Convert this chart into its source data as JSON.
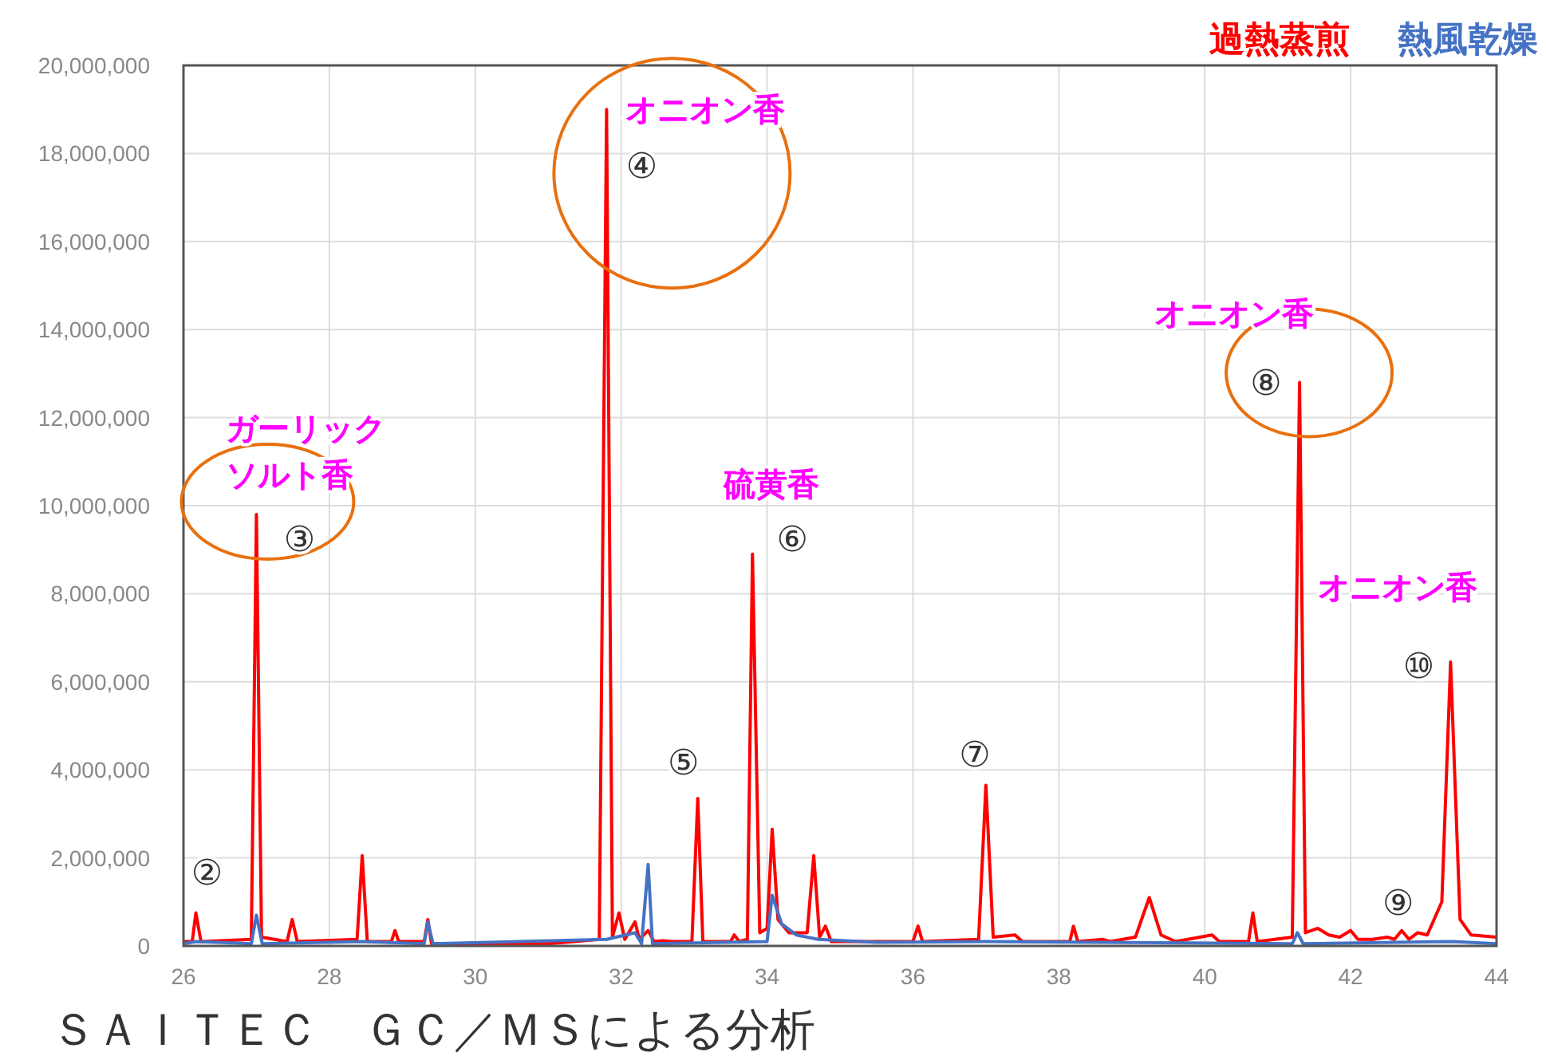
{
  "chart_data": {
    "type": "line",
    "xlim": [
      26,
      44
    ],
    "xticks": [
      26,
      28,
      30,
      32,
      34,
      36,
      38,
      40,
      42,
      44
    ],
    "ylim": [
      0,
      20000000
    ],
    "yticks": [
      0,
      {
        "value": 2000000,
        "label": "2,000,000"
      },
      {
        "value": 4000000,
        "label": "4,000,000"
      },
      {
        "value": 6000000,
        "label": "6,000,000"
      },
      {
        "value": 8000000,
        "label": "8,000,000"
      },
      {
        "value": 10000000,
        "label": "10,000,000"
      },
      {
        "value": 12000000,
        "label": "12,000,000"
      },
      {
        "value": 14000000,
        "label": "14,000,000"
      },
      {
        "value": 16000000,
        "label": "16,000,000"
      },
      {
        "value": 18000000,
        "label": "18,000,000"
      },
      {
        "value": 20000000,
        "label": "20,000,000"
      }
    ],
    "grid": true,
    "legend": "top right",
    "marker": "none",
    "line_style": "solid",
    "series": [
      {
        "name": "過熱蒸煎",
        "color": "#ff0000",
        "x": [
          26.0,
          26.12,
          26.17,
          26.24,
          26.93,
          27.0,
          27.07,
          27.42,
          27.49,
          27.56,
          28.38,
          28.45,
          28.52,
          28.85,
          28.9,
          28.95,
          29.3,
          29.35,
          29.4,
          30.5,
          31.0,
          31.7,
          31.8,
          31.88,
          31.97,
          32.05,
          32.19,
          32.25,
          32.37,
          32.45,
          32.57,
          32.7,
          32.97,
          33.05,
          33.12,
          33.5,
          33.55,
          33.62,
          33.73,
          33.8,
          33.9,
          34.0,
          34.07,
          34.15,
          34.3,
          34.55,
          34.64,
          34.72,
          34.8,
          34.88,
          35.4,
          35.5,
          36.0,
          36.07,
          36.13,
          36.9,
          37.0,
          37.1,
          37.4,
          37.5,
          38.15,
          38.2,
          38.26,
          38.6,
          38.7,
          39.05,
          39.24,
          39.4,
          39.6,
          40.1,
          40.2,
          40.6,
          40.66,
          40.72,
          41.2,
          41.3,
          41.38,
          41.55,
          41.7,
          41.85,
          42.0,
          42.1,
          42.3,
          42.5,
          42.6,
          42.7,
          42.8,
          42.92,
          43.05,
          43.25,
          43.37,
          43.5,
          43.65,
          44.0
        ],
        "values": [
          100000,
          100000,
          750000,
          100000,
          150000,
          9800000,
          200000,
          100000,
          600000,
          100000,
          150000,
          2050000,
          100000,
          100000,
          350000,
          100000,
          100000,
          600000,
          50000,
          50000,
          50000,
          150000,
          19000000,
          200000,
          750000,
          150000,
          550000,
          150000,
          350000,
          100000,
          120000,
          100000,
          100000,
          3350000,
          100000,
          100000,
          250000,
          100000,
          150000,
          8900000,
          300000,
          400000,
          2650000,
          600000,
          300000,
          300000,
          2050000,
          200000,
          450000,
          100000,
          100000,
          100000,
          100000,
          450000,
          100000,
          150000,
          3650000,
          200000,
          250000,
          100000,
          100000,
          450000,
          100000,
          150000,
          100000,
          200000,
          1100000,
          250000,
          100000,
          250000,
          100000,
          100000,
          750000,
          100000,
          200000,
          12800000,
          300000,
          400000,
          250000,
          200000,
          350000,
          150000,
          150000,
          200000,
          150000,
          350000,
          150000,
          300000,
          250000,
          1000000,
          6450000,
          600000,
          250000,
          200000
        ]
      },
      {
        "name": "熱風乾燥",
        "color": "#4472c4",
        "x": [
          26.0,
          26.17,
          26.93,
          27.0,
          27.08,
          28.45,
          29.3,
          29.35,
          29.42,
          31.8,
          32.19,
          32.28,
          32.37,
          32.43,
          34.0,
          34.07,
          34.2,
          34.4,
          34.7,
          35.5,
          37.0,
          41.2,
          41.27,
          41.35,
          43.4,
          44.0
        ],
        "values": [
          50000,
          100000,
          50000,
          700000,
          50000,
          100000,
          50000,
          550000,
          50000,
          150000,
          300000,
          50000,
          1850000,
          50000,
          100000,
          1150000,
          500000,
          250000,
          150000,
          80000,
          100000,
          50000,
          300000,
          50000,
          100000,
          50000
        ]
      }
    ],
    "annotations": [
      {
        "text": "②",
        "x": 26.17,
        "y": 750000
      },
      {
        "text": "ガーリック",
        "x": 27.0,
        "y": 9800000
      },
      {
        "text": "ソルト香",
        "x": 27.0,
        "y": 9800000
      },
      {
        "text": "③",
        "x": 27.0,
        "y": 9800000
      },
      {
        "text": "オニオン香",
        "x": 31.8,
        "y": 19000000
      },
      {
        "text": "④",
        "x": 31.8,
        "y": 19000000
      },
      {
        "text": "⑤",
        "x": 33.05,
        "y": 3350000
      },
      {
        "text": "硫黄香",
        "x": 33.8,
        "y": 8900000
      },
      {
        "text": "⑥",
        "x": 33.8,
        "y": 8900000
      },
      {
        "text": "⑦",
        "x": 37.0,
        "y": 3650000
      },
      {
        "text": "オニオン香",
        "x": 41.3,
        "y": 12800000
      },
      {
        "text": "⑧",
        "x": 41.3,
        "y": 12800000
      },
      {
        "text": "⑨",
        "x": 42.5,
        "y": 200000
      },
      {
        "text": "オニオン香",
        "x": 43.37,
        "y": 6450000
      },
      {
        "text": "⑩",
        "x": 43.37,
        "y": 6450000
      },
      "ＳＡＩＴＥＣ　ＧＣ／ＭＳによる分析"
    ]
  }
}
